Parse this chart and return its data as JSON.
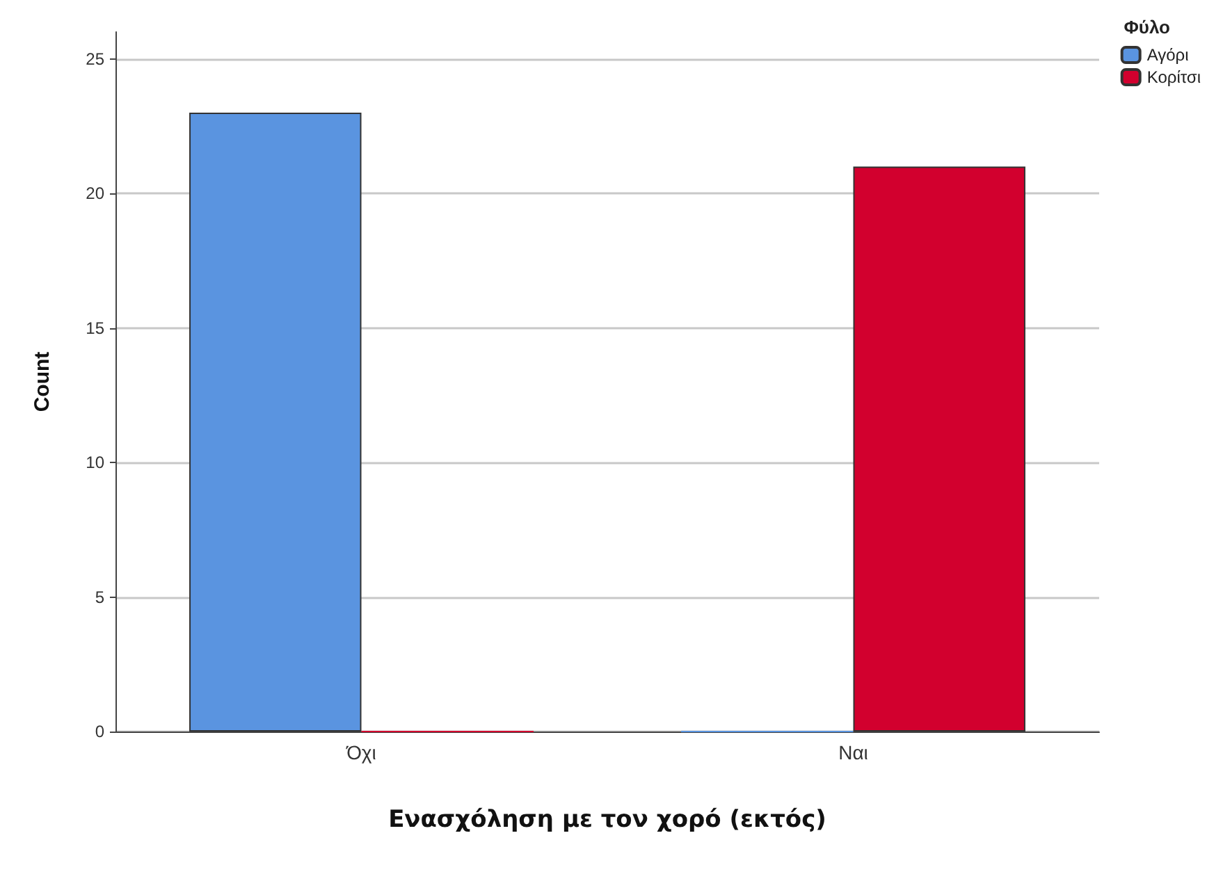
{
  "chart_data": {
    "type": "bar",
    "xlabel": "Ενασχόληση με τον χορό (εκτός)",
    "ylabel": "Count",
    "legend_title": "Φύλο",
    "categories": [
      "Όχι",
      "Ναι"
    ],
    "series": [
      {
        "name": "Αγόρι",
        "color": "#5a94e0",
        "values": [
          23,
          0
        ]
      },
      {
        "name": "Κορίτσι",
        "color": "#d2002e",
        "values": [
          0,
          21
        ]
      }
    ],
    "ylim": [
      0,
      26
    ],
    "yticks": [
      0,
      5,
      10,
      15,
      20,
      25
    ],
    "grid": "y",
    "legend": "top right"
  }
}
